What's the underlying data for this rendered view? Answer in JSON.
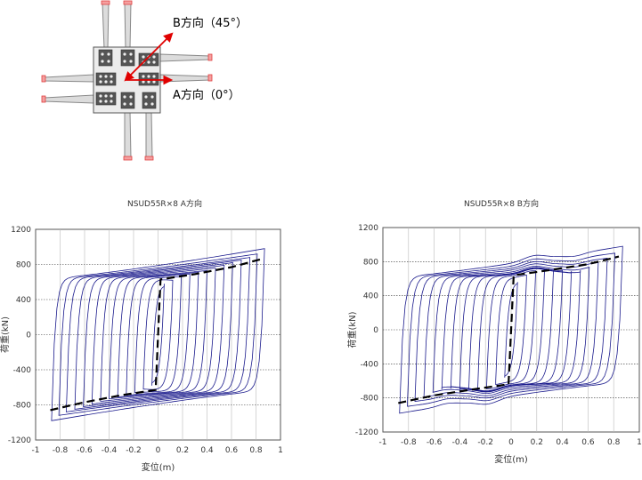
{
  "diagram": {
    "label_b": "B方向（45°）",
    "label_a": "A方向（0°）"
  },
  "chart_data": [
    {
      "type": "line",
      "title": "NSUD55R×8 A方向",
      "xlabel": "変位(m)",
      "ylabel": "荷重(kN)",
      "xlim": [
        -1,
        1
      ],
      "ylim": [
        -1200,
        1200
      ],
      "xticks": [
        -1,
        -0.8,
        -0.6,
        -0.4,
        -0.2,
        0,
        0.2,
        0.4,
        0.6,
        0.8,
        1
      ],
      "yticks": [
        -1200,
        -800,
        -400,
        0,
        400,
        800,
        1200
      ],
      "grid": true,
      "hysteresis": {
        "amplitudes": [
          0.05,
          0.12,
          0.19,
          0.26,
          0.33,
          0.4,
          0.47,
          0.54,
          0.61,
          0.68,
          0.75,
          0.81,
          0.87
        ],
        "peak_force": [
          580,
          620,
          660,
          690,
          710,
          730,
          760,
          790,
          820,
          850,
          880,
          920,
          980
        ],
        "yield_force": 640,
        "plateau_humps": false,
        "color": "#1a1a8c"
      },
      "skeleton": {
        "x": [
          -0.88,
          -0.6,
          -0.3,
          -0.02,
          0.02,
          0.3,
          0.6,
          0.84
        ],
        "y": [
          -860,
          -770,
          -690,
          -630,
          630,
          690,
          770,
          860
        ],
        "style": "dashed",
        "color": "#000000"
      }
    },
    {
      "type": "line",
      "title": "NSUD55R×8 B方向",
      "xlabel": "変位(m)",
      "ylabel": "荷重(kN)",
      "xlim": [
        -1,
        1
      ],
      "ylim": [
        -1200,
        1200
      ],
      "xticks": [
        -1,
        -0.8,
        -0.6,
        -0.4,
        -0.2,
        0,
        0.2,
        0.4,
        0.6,
        0.8,
        1
      ],
      "yticks": [
        -1200,
        -800,
        -400,
        0,
        400,
        800,
        1200
      ],
      "grid": true,
      "hysteresis": {
        "amplitudes": [
          0.05,
          0.12,
          0.19,
          0.26,
          0.33,
          0.4,
          0.47,
          0.54,
          0.61,
          0.68,
          0.75,
          0.81,
          0.87
        ],
        "peak_force": [
          560,
          600,
          640,
          670,
          690,
          700,
          690,
          700,
          740,
          790,
          840,
          900,
          980
        ],
        "yield_force": 620,
        "plateau_humps": true,
        "color": "#1a1a8c"
      },
      "skeleton": {
        "x": [
          -0.88,
          -0.6,
          -0.3,
          -0.02,
          0.02,
          0.3,
          0.6,
          0.84
        ],
        "y": [
          -860,
          -770,
          -700,
          -640,
          640,
          700,
          770,
          860
        ],
        "style": "dashed",
        "color": "#000000"
      }
    }
  ]
}
